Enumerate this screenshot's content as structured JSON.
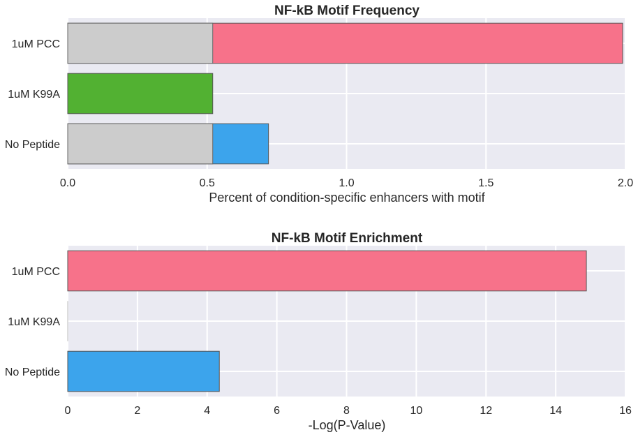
{
  "chart_data": [
    {
      "type": "bar",
      "orientation": "horizontal",
      "title": "NF-kB Motif Frequency",
      "xlabel": "Percent of condition-specific enhancers with motif",
      "ylabel": "",
      "categories": [
        "1uM PCC",
        "1uM K99A",
        "No Peptide"
      ],
      "series": [
        {
          "role": "baseline",
          "color": "#cccccc",
          "values": [
            0.52,
            0.52,
            0.52
          ]
        },
        {
          "role": "condition",
          "values": [
            1.99,
            0.52,
            0.72
          ]
        }
      ],
      "bar_colors": [
        "#f7728a",
        "#52b132",
        "#3ca4ec"
      ],
      "xlim": [
        0,
        2.0
      ],
      "xticks": [
        "0.0",
        "0.5",
        "1.0",
        "1.5",
        "2.0"
      ],
      "grid": true
    },
    {
      "type": "bar",
      "orientation": "horizontal",
      "title": "NF-kB Motif Enrichment",
      "xlabel": "-Log(P-Value)",
      "ylabel": "",
      "categories": [
        "1uM PCC",
        "1uM K99A",
        "No Peptide"
      ],
      "values": [
        14.88,
        0.0,
        4.35
      ],
      "bar_colors": [
        "#f7728a",
        "#52b132",
        "#3ca4ec"
      ],
      "xlim": [
        0,
        16
      ],
      "xticks": [
        "0",
        "2",
        "4",
        "6",
        "8",
        "10",
        "12",
        "14",
        "16"
      ],
      "grid": true
    }
  ]
}
